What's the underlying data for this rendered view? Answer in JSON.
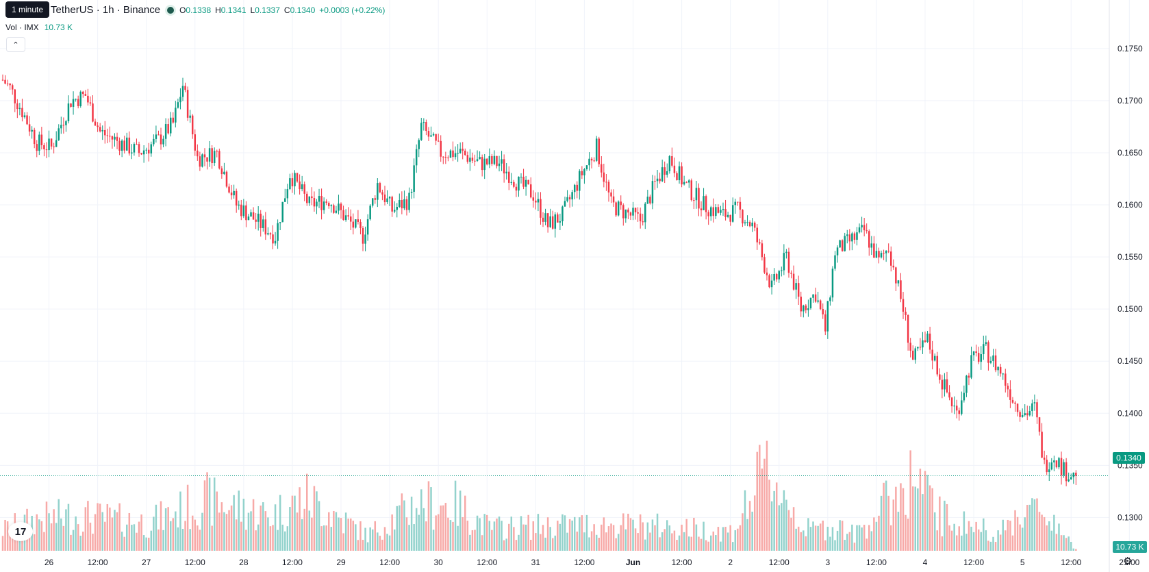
{
  "tooltip": "1 minute",
  "legend": {
    "symbol": "TetherUS · 1h · Binance",
    "open_label": "O",
    "open": "0.1338",
    "high_label": "H",
    "high": "0.1341",
    "low_label": "L",
    "low": "0.1337",
    "close_label": "C",
    "close": "0.1340",
    "change": "+0.0003 (+0.22%)"
  },
  "volume_legend": {
    "label": "Vol · IMX",
    "value": "10.73 K"
  },
  "price_badge": "0.1340",
  "volume_badge": "10.73 K",
  "collapse_icon": "chevron-up-icon",
  "logo": "tradingview-logo",
  "colors": {
    "up": "#089981",
    "down": "#f23645",
    "up_volume": "#92d2cc",
    "down_volume": "#f7a9a7",
    "grid": "#f0f3fa",
    "text": "#131722"
  },
  "chart_data": {
    "type": "candlestick",
    "interval": "1h",
    "ylim": [
      0.1272,
      0.1765
    ],
    "y_ticks": [
      "0.1750",
      "0.1700",
      "0.1650",
      "0.1600",
      "0.1550",
      "0.1500",
      "0.1450",
      "0.1400",
      "0.1350",
      "0.1300"
    ],
    "x_ticks": [
      "26",
      "12:00",
      "27",
      "12:00",
      "28",
      "12:00",
      "29",
      "12:00",
      "30",
      "12:00",
      "31",
      "12:00",
      "Jun",
      "12:00",
      "2",
      "12:00",
      "3",
      "12:00",
      "4",
      "12:00",
      "5",
      "12:00",
      "21:00"
    ],
    "last_price": 0.134,
    "price_path": [
      [
        0,
        0.172
      ],
      [
        3,
        0.1712
      ],
      [
        8,
        0.169
      ],
      [
        14,
        0.166
      ],
      [
        20,
        0.1655
      ],
      [
        28,
        0.17
      ],
      [
        34,
        0.1705
      ],
      [
        40,
        0.167
      ],
      [
        48,
        0.166
      ],
      [
        56,
        0.165
      ],
      [
        64,
        0.1662
      ],
      [
        70,
        0.1678
      ],
      [
        74,
        0.1715
      ],
      [
        80,
        0.1645
      ],
      [
        88,
        0.165
      ],
      [
        96,
        0.16
      ],
      [
        104,
        0.1585
      ],
      [
        112,
        0.157
      ],
      [
        118,
        0.163
      ],
      [
        126,
        0.16
      ],
      [
        134,
        0.1605
      ],
      [
        140,
        0.159
      ],
      [
        148,
        0.157
      ],
      [
        154,
        0.162
      ],
      [
        160,
        0.1595
      ],
      [
        167,
        0.1605
      ],
      [
        172,
        0.1675
      ],
      [
        180,
        0.165
      ],
      [
        188,
        0.165
      ],
      [
        196,
        0.164
      ],
      [
        204,
        0.164
      ],
      [
        212,
        0.162
      ],
      [
        218,
        0.161
      ],
      [
        224,
        0.158
      ],
      [
        230,
        0.159
      ],
      [
        238,
        0.163
      ],
      [
        244,
        0.1655
      ],
      [
        250,
        0.16
      ],
      [
        258,
        0.159
      ],
      [
        262,
        0.1585
      ],
      [
        268,
        0.162
      ],
      [
        274,
        0.1645
      ],
      [
        280,
        0.162
      ],
      [
        288,
        0.16
      ],
      [
        296,
        0.159
      ],
      [
        302,
        0.1595
      ],
      [
        308,
        0.158
      ],
      [
        316,
        0.152
      ],
      [
        322,
        0.155
      ],
      [
        328,
        0.15
      ],
      [
        334,
        0.1515
      ],
      [
        338,
        0.148
      ],
      [
        342,
        0.1555
      ],
      [
        348,
        0.1565
      ],
      [
        354,
        0.1575
      ],
      [
        360,
        0.1545
      ],
      [
        364,
        0.156
      ],
      [
        370,
        0.15
      ],
      [
        374,
        0.145
      ],
      [
        380,
        0.147
      ],
      [
        386,
        0.143
      ],
      [
        392,
        0.14
      ],
      [
        398,
        0.145
      ],
      [
        404,
        0.146
      ],
      [
        410,
        0.144
      ],
      [
        416,
        0.141
      ],
      [
        420,
        0.14
      ],
      [
        424,
        0.1405
      ],
      [
        428,
        0.135
      ],
      [
        432,
        0.136
      ],
      [
        436,
        0.1345
      ],
      [
        440,
        0.134
      ]
    ],
    "volume_range": [
      0,
      6300
    ],
    "volume_path": [
      [
        0,
        1200
      ],
      [
        14,
        1800
      ],
      [
        30,
        2000
      ],
      [
        60,
        1600
      ],
      [
        84,
        2900
      ],
      [
        110,
        2000
      ],
      [
        125,
        3000
      ],
      [
        150,
        900
      ],
      [
        170,
        2700
      ],
      [
        186,
        2600
      ],
      [
        200,
        1300
      ],
      [
        240,
        1500
      ],
      [
        268,
        1400
      ],
      [
        300,
        1100
      ],
      [
        314,
        4700
      ],
      [
        330,
        1200
      ],
      [
        344,
        1400
      ],
      [
        350,
        900
      ],
      [
        374,
        4200
      ],
      [
        386,
        1900
      ],
      [
        410,
        1000
      ],
      [
        420,
        2500
      ],
      [
        432,
        1800
      ],
      [
        440,
        150
      ]
    ]
  }
}
